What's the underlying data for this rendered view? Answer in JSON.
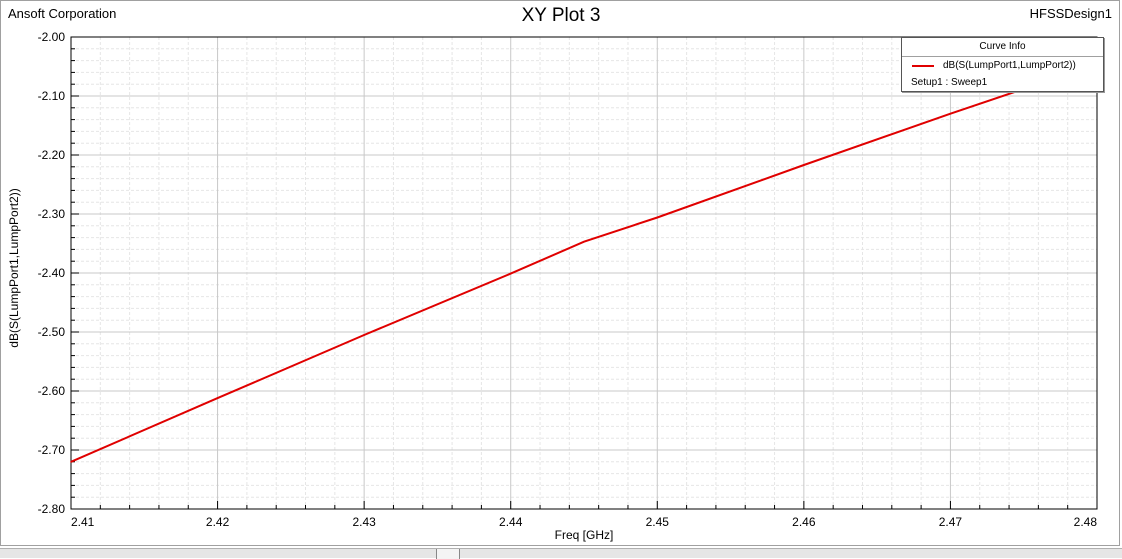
{
  "header": {
    "company": "Ansoft Corporation",
    "design": "HFSSDesign1"
  },
  "legend": {
    "title": "Curve Info",
    "series_label": "dB(S(LumpPort1,LumpPort2))",
    "setup_label": "Setup1 : Sweep1"
  },
  "colors": {
    "series": "#e00000",
    "grid": "#c8c8c8",
    "axis": "#000000"
  },
  "chart_data": {
    "type": "line",
    "title": "XY Plot 3",
    "xlabel": "Freq [GHz]",
    "ylabel": "dB(S(LumpPort1,LumpPort2))",
    "xlim": [
      2.41,
      2.48
    ],
    "ylim": [
      -2.8,
      -2.0
    ],
    "xticks": [
      "2.41",
      "2.42",
      "2.43",
      "2.44",
      "2.45",
      "2.46",
      "2.47",
      "2.48"
    ],
    "yticks": [
      "-2.00",
      "-2.10",
      "-2.20",
      "-2.30",
      "-2.40",
      "-2.50",
      "-2.60",
      "-2.70",
      "-2.80"
    ],
    "grid": true,
    "legend_position": "top-right",
    "series": [
      {
        "name": "dB(S(LumpPort1,LumpPort2))",
        "x": [
          2.41,
          2.42,
          2.43,
          2.44,
          2.445,
          2.45,
          2.46,
          2.47,
          2.475,
          2.48
        ],
        "y": [
          -2.72,
          -2.612,
          -2.505,
          -2.401,
          -2.347,
          -2.306,
          -2.217,
          -2.13,
          -2.088,
          -2.05
        ]
      }
    ]
  }
}
